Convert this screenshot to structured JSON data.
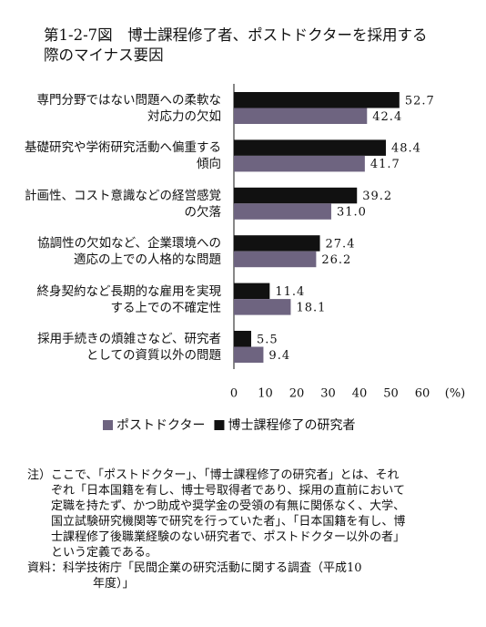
{
  "chart_data": {
    "type": "bar",
    "orientation": "horizontal",
    "title": "第1-2-7図　博士課程修了者、ポストドクターを採用する際のマイナス要因",
    "categories": [
      "専門分野ではない問題への柔軟な\n対応力の欠如",
      "基礎研究や学術研究活動へ偏重する\n傾向",
      "計画性、コスト意識などの経営感覚\nの欠落",
      "協調性の欠如など、企業環境への\n適応の上での人格的な問題",
      "終身契約など長期的な雇用を実現\nする上での不確定性",
      "採用手続きの煩雑さなど、研究者\nとしての資質以外の問題"
    ],
    "series": [
      {
        "name": "ポストドクター",
        "color": "#6e6480",
        "values": [
          42.4,
          41.7,
          31.0,
          26.2,
          18.1,
          9.4
        ],
        "value_labels": [
          "42.4",
          "41.7",
          "31.0",
          "26.2",
          "18.1",
          "9.4"
        ]
      },
      {
        "name": "博士課程修了の研究者",
        "color": "#111111",
        "values": [
          52.7,
          48.4,
          39.2,
          27.4,
          11.4,
          5.5
        ],
        "value_labels": [
          "52.7",
          "48.4",
          "39.2",
          "27.4",
          "11.4",
          "5.5"
        ]
      }
    ],
    "xlim": [
      0,
      60
    ],
    "xticks": [
      0,
      10,
      20,
      30,
      40,
      50,
      60
    ],
    "x_unit": "(%)",
    "legend": "bottom",
    "note": "注）ここで、「ポストドクター」、「博士課程修了の研究者」とは、それぞれ「日本国籍を有し、博士号取得者であり、採用の直前において定職を持たず、かつ助成や奨学金の受領の有無に関係なく、大学、国立試験研究機関等で研究を行っていた者」、「日本国籍を有し、博士課程修了後職業経験のない研究者で、ポストドクター以外の者」という定義である。",
    "source": "資料：科学技術庁「民間企業の研究活動に関する調査（平成10年度）」"
  }
}
